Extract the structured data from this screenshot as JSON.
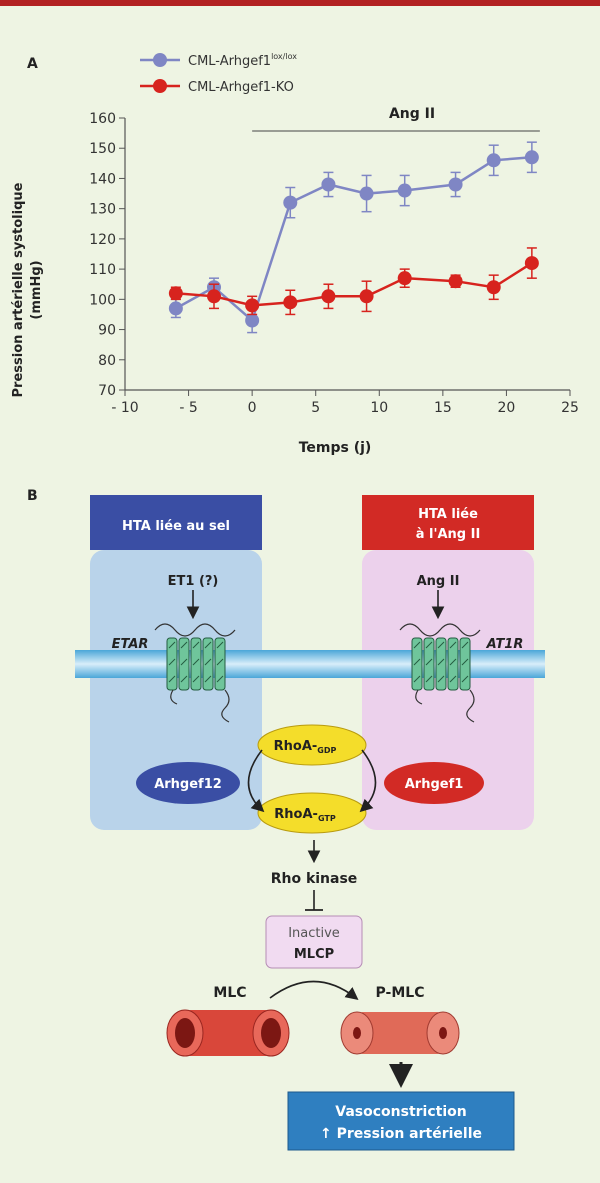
{
  "panel_a_label": "A",
  "panel_b_label": "B",
  "chart_data": {
    "type": "line",
    "xlabel": "Temps (j)",
    "ylabel_line1": "Pression artérielle systolique",
    "ylabel_line2": "(mmHg)",
    "xlim": [
      -10,
      25
    ],
    "ylim": [
      70,
      160
    ],
    "xticks": [
      -10,
      -5,
      0,
      5,
      10,
      15,
      20,
      25
    ],
    "xtick_labels": [
      "- 10",
      "- 5",
      "0",
      "5",
      "10",
      "15",
      "20",
      "25"
    ],
    "yticks": [
      70,
      80,
      90,
      100,
      110,
      120,
      130,
      140,
      150,
      160
    ],
    "annotation": {
      "text": "Ang II",
      "x_start": 0,
      "x_end": 22
    },
    "legend_position": "top-left",
    "series": [
      {
        "name": "CML-Arhgef1",
        "name_sup": "lox/lox",
        "color": "#7f86c4",
        "x": [
          -6,
          -3,
          0,
          3,
          6,
          9,
          12,
          16,
          19,
          22
        ],
        "y": [
          97,
          104,
          93,
          132,
          138,
          135,
          136,
          138,
          146,
          147
        ],
        "err": [
          3,
          3,
          4,
          5,
          4,
          6,
          5,
          4,
          5,
          5
        ]
      },
      {
        "name": "CML-Arhgef1-KO",
        "name_sup": "",
        "color": "#d7231e",
        "x": [
          -6,
          -3,
          0,
          3,
          6,
          9,
          12,
          16,
          19,
          22
        ],
        "y": [
          102,
          101,
          98,
          99,
          101,
          101,
          107,
          106,
          104,
          112
        ],
        "err": [
          2,
          4,
          3,
          4,
          4,
          5,
          3,
          2,
          4,
          5
        ]
      }
    ]
  },
  "diagram": {
    "box_left_title": "HTA liée au sel",
    "box_right_title_1": "HTA liée",
    "box_right_title_2": "à l'Ang II",
    "ligand_left": "ET1 (?)",
    "ligand_right": "Ang II",
    "receptor_left": "ETAR",
    "receptor_right": "AT1R",
    "gef_left": "Arhgef12",
    "gef_right": "Arhgef1",
    "rhoa_gdp": "RhoA-",
    "rhoa_gdp_sub": "GDP",
    "rhoa_gtp": "RhoA-",
    "rhoa_gtp_sub": "GTP",
    "rho_kinase": "Rho kinase",
    "inactive": "Inactive",
    "mlcp": "MLCP",
    "mlc": "MLC",
    "pmlc": "P-MLC",
    "outcome_1": "Vasoconstriction",
    "outcome_2": "↑ Pression artérielle"
  },
  "colors": {
    "blue_box": "#b9d3ea",
    "pink_box": "#ecd1ec",
    "blue_header": "#3a4ea4",
    "red_header": "#d22a25",
    "rhoa_yellow": "#f4dd2a",
    "outcome_blue": "#2f7fc0",
    "vessel": "#d9473a"
  }
}
